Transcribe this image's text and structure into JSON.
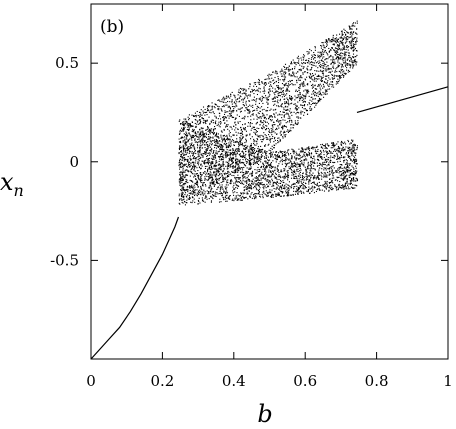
{
  "chart_data": {
    "type": "scatter",
    "panel_label": "(b)",
    "xlabel": "b",
    "ylabel_main": "x",
    "ylabel_sub": "n",
    "xlim": [
      0,
      1
    ],
    "ylim": [
      -1,
      0.8
    ],
    "xticks": [
      0,
      0.2,
      0.4,
      0.6,
      0.8,
      1
    ],
    "xtick_labels": [
      "0",
      "0.2",
      "0.4",
      "0.6",
      "0.8",
      "1"
    ],
    "yticks": [
      -0.5,
      0,
      0.5
    ],
    "ytick_labels": [
      "-0.5",
      "0",
      "0.5"
    ],
    "grid": false,
    "series": [
      {
        "kind": "curve",
        "points": [
          [
            0,
            -1.0
          ],
          [
            0.02,
            -0.96
          ],
          [
            0.05,
            -0.9
          ],
          [
            0.08,
            -0.84
          ],
          [
            0.11,
            -0.76
          ],
          [
            0.14,
            -0.67
          ],
          [
            0.17,
            -0.57
          ],
          [
            0.2,
            -0.47
          ],
          [
            0.22,
            -0.39
          ],
          [
            0.235,
            -0.33
          ],
          [
            0.245,
            -0.28
          ]
        ]
      },
      {
        "kind": "chaotic-band",
        "x_range": [
          0.245,
          0.745
        ],
        "upper_band": {
          "low": [
            [
              0.245,
              -0.22
            ],
            [
              0.5,
              0.05
            ],
            [
              0.745,
              0.5
            ]
          ],
          "high": [
            [
              0.245,
              0.22
            ],
            [
              0.5,
              0.45
            ],
            [
              0.745,
              0.72
            ]
          ]
        },
        "lower_band": {
          "low": [
            [
              0.245,
              -0.22
            ],
            [
              0.5,
              -0.18
            ],
            [
              0.745,
              -0.13
            ]
          ],
          "high": [
            [
              0.245,
              0.22
            ],
            [
              0.5,
              0.05
            ],
            [
              0.745,
              0.12
            ]
          ]
        }
      },
      {
        "kind": "curve",
        "points": [
          [
            0.745,
            0.25
          ],
          [
            1.0,
            0.38
          ]
        ]
      }
    ]
  }
}
